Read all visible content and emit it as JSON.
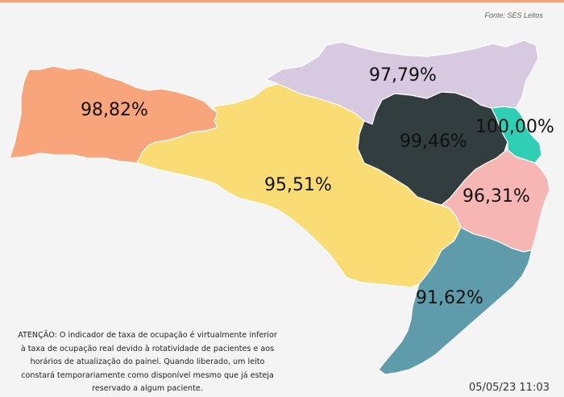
{
  "source": "Fonte: SES Leitos",
  "regions": [
    {
      "id": "oeste",
      "label": "98,82%",
      "color": "#f9a57c"
    },
    {
      "id": "serra-meio-oeste",
      "label": "95,51%",
      "color": "#f9dc73"
    },
    {
      "id": "norte",
      "label": "97,79%",
      "color": "#d7c9df"
    },
    {
      "id": "vale-itajai",
      "label": "99,46%",
      "color": "#323d40"
    },
    {
      "id": "nordeste",
      "label": "100,00%",
      "color": "#2ecfb4"
    },
    {
      "id": "grande-florianopolis",
      "label": "96,31%",
      "color": "#f6b7b4"
    },
    {
      "id": "sul",
      "label": "91,62%",
      "color": "#5f9cab"
    }
  ],
  "notice": "ATENÇÃO: O indicador de taxa de ocupação é virtualmente inferior à taxa de ocupação real devido à rotatividade de pacientes e aos horários de atualização do painel.  Quando liberado, um leito constará temporariamente como disponível mesmo que já esteja reservado a algum paciente.",
  "timestamp": "05/05/23 11:03"
}
